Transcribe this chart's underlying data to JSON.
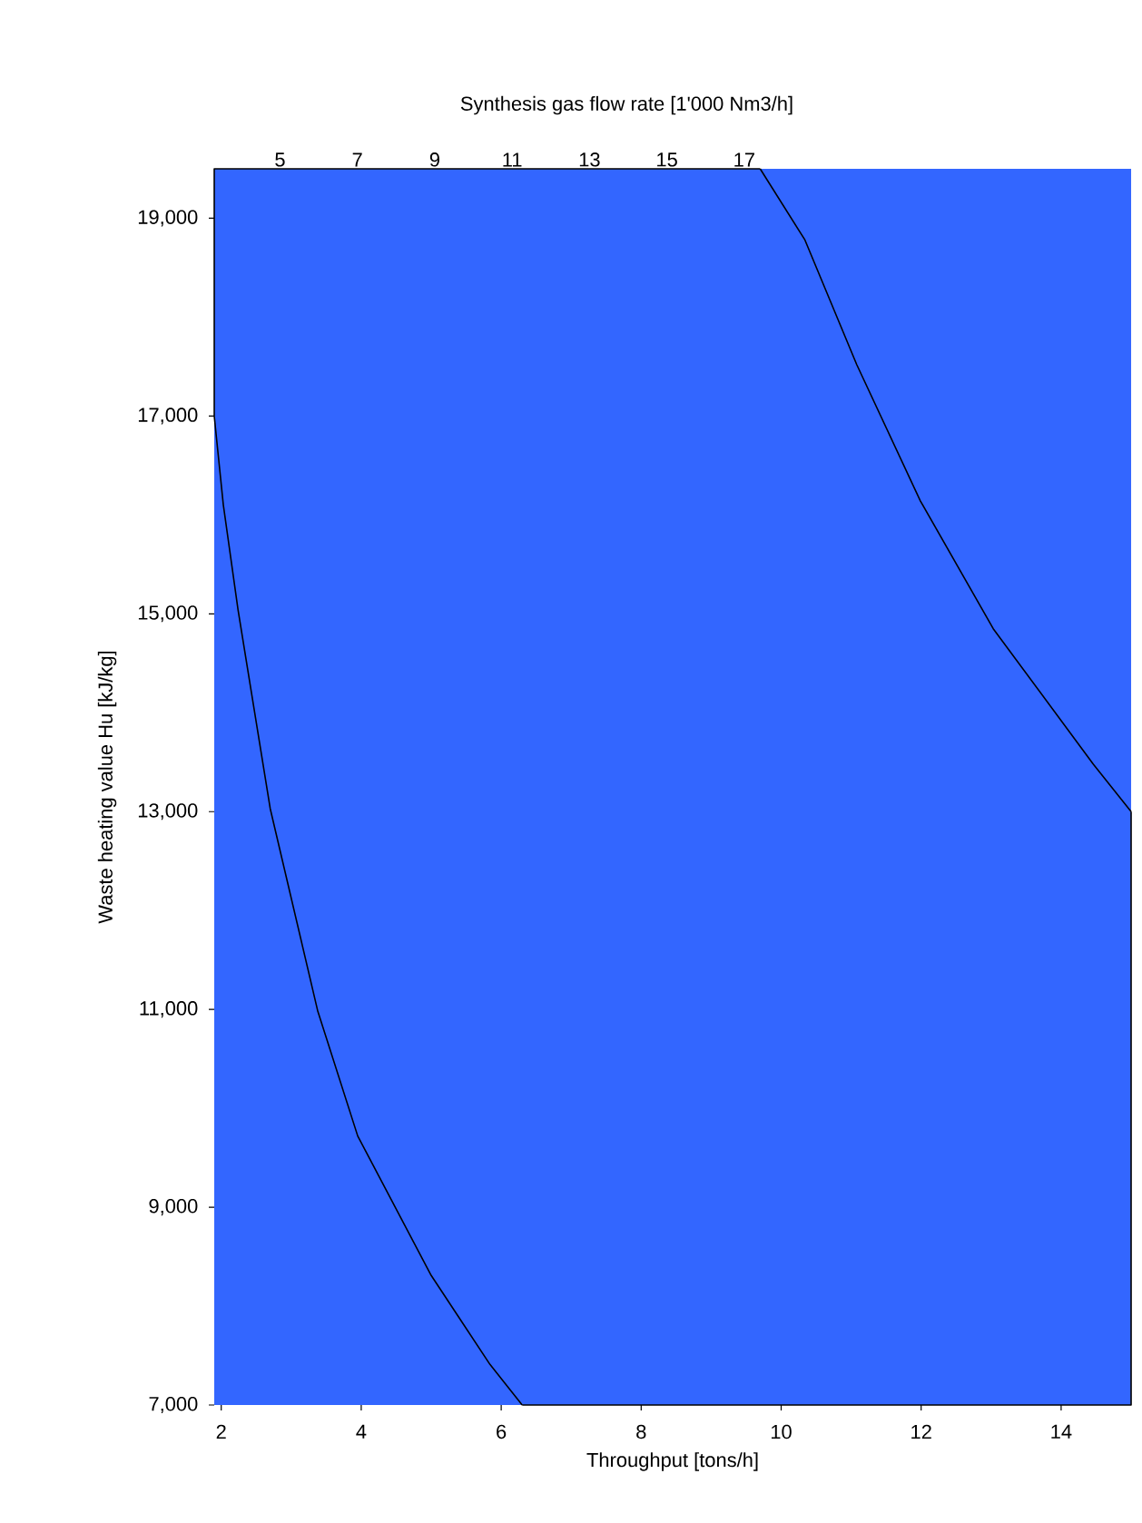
{
  "chart_data": {
    "type": "line",
    "xlabel": "Throughput [tons/h]",
    "ylabel": "Waste heating value Hu [kJ/kg]",
    "x2label": "Synthesis gas flow rate [1'000 Nm3/h]",
    "xlim": [
      1.9,
      15
    ],
    "ylim": [
      7000,
      19500
    ],
    "xticks": [
      2,
      4,
      6,
      8,
      10,
      12,
      14
    ],
    "yticks": [
      {
        "value": 7000,
        "label": "7,000"
      },
      {
        "value": 9000,
        "label": "9,000"
      },
      {
        "value": 11000,
        "label": "11,000"
      },
      {
        "value": 13000,
        "label": "13,000"
      },
      {
        "value": 15000,
        "label": "15,000"
      },
      {
        "value": 17000,
        "label": "17,000"
      },
      {
        "value": 19000,
        "label": "19,000"
      }
    ],
    "x2lim": [
      3.3,
      27
    ],
    "x2ticks": [
      5,
      7,
      9,
      11,
      13,
      15,
      17
    ],
    "bands": [
      {
        "axis": "y",
        "from": 7000,
        "to": 19500,
        "color": "#3366ff"
      }
    ],
    "line_style": "solid",
    "marker": "none",
    "grid": false,
    "series": [
      {
        "color": "#000000",
        "x": [
          1.9,
          2.03,
          2.24,
          2.7,
          3.38,
          3.95,
          5.0,
          5.84,
          6.3
        ],
        "values": [
          17000,
          16100,
          15040,
          13030,
          10980,
          9720,
          8310,
          7410,
          7000
        ]
      },
      {
        "color": "#000000",
        "x": [
          15,
          14.46,
          13.03,
          11.99,
          11.08,
          10.34,
          9.7
        ],
        "values": [
          13000,
          13480,
          14850,
          16140,
          17520,
          18780,
          19500
        ]
      }
    ]
  }
}
